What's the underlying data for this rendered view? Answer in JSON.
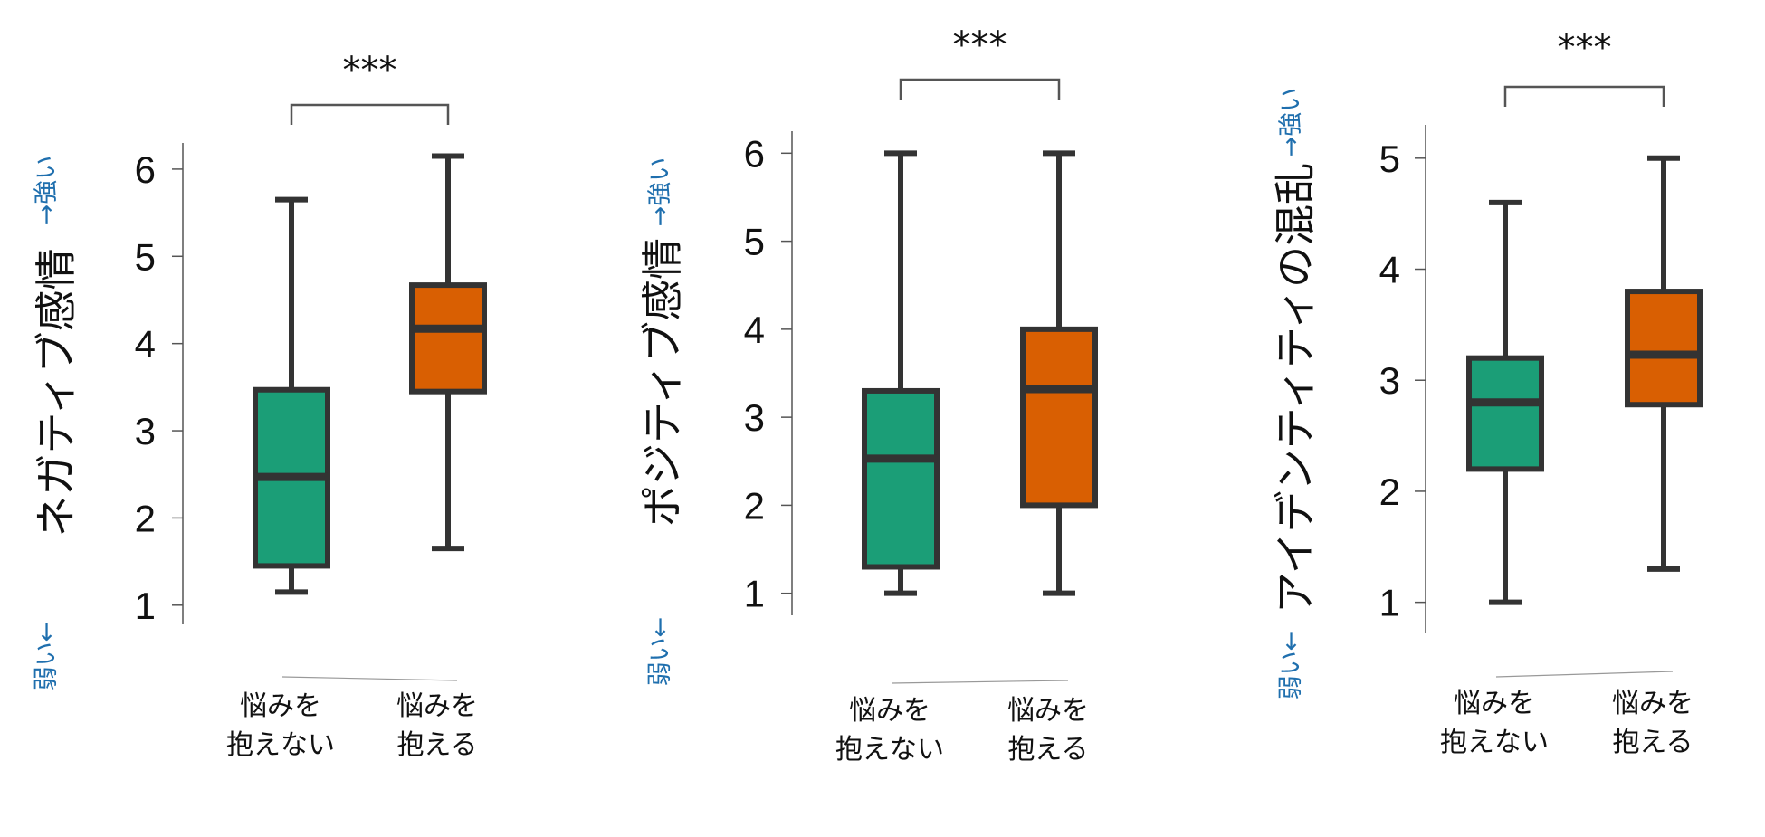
{
  "colors": {
    "group_a": "#1b9e77",
    "group_b": "#d95f02",
    "edge": "#333333",
    "direction_text": "#1f6fae"
  },
  "chart_data": [
    {
      "type": "box",
      "ylabel": "ネガティブ感情",
      "direction_low": "弱い←",
      "direction_high": "→強い",
      "yticks": [
        1,
        2,
        3,
        4,
        5,
        6
      ],
      "ylim": [
        0.78,
        6.3
      ],
      "significance": "***",
      "grid": false,
      "series": [
        {
          "category": [
            "悩みを",
            "抱えない"
          ],
          "whisker_low": 1.15,
          "q1": 1.45,
          "median": 2.47,
          "q3": 3.47,
          "whisker_high": 5.65
        },
        {
          "category": [
            "悩みを",
            "抱える"
          ],
          "whisker_low": 1.65,
          "q1": 3.45,
          "median": 4.17,
          "q3": 4.67,
          "whisker_high": 6.15
        }
      ]
    },
    {
      "type": "box",
      "ylabel": "ポジティブ感情",
      "direction_low": "弱い←",
      "direction_high": "→強い",
      "yticks": [
        1,
        2,
        3,
        4,
        5,
        6
      ],
      "ylim": [
        0.75,
        6.25
      ],
      "significance": "***",
      "grid": false,
      "series": [
        {
          "category": [
            "悩みを",
            "抱えない"
          ],
          "whisker_low": 1.0,
          "q1": 1.3,
          "median": 2.53,
          "q3": 3.3,
          "whisker_high": 6.0
        },
        {
          "category": [
            "悩みを",
            "抱える"
          ],
          "whisker_low": 1.0,
          "q1": 2.0,
          "median": 3.32,
          "q3": 4.0,
          "whisker_high": 6.0
        }
      ]
    },
    {
      "type": "box",
      "ylabel": "アイデンティティの混乱",
      "direction_low": "弱い←",
      "direction_high": "→強い",
      "yticks": [
        1,
        2,
        3,
        4,
        5
      ],
      "ylim": [
        0.72,
        5.3
      ],
      "significance": "***",
      "grid": false,
      "series": [
        {
          "category": [
            "悩みを",
            "抱えない"
          ],
          "whisker_low": 1.0,
          "q1": 2.2,
          "median": 2.8,
          "q3": 3.2,
          "whisker_high": 4.6
        },
        {
          "category": [
            "悩みを",
            "抱える"
          ],
          "whisker_low": 1.3,
          "q1": 2.78,
          "median": 3.23,
          "q3": 3.8,
          "whisker_high": 5.0
        }
      ]
    }
  ]
}
